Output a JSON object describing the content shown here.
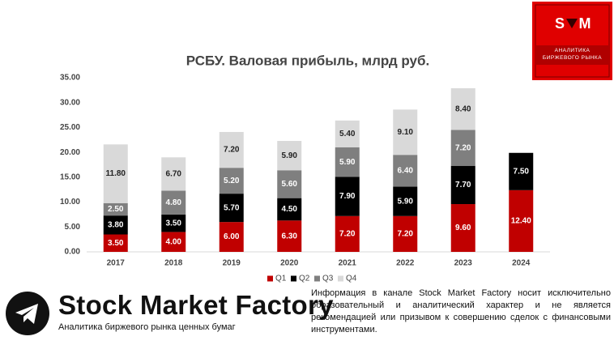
{
  "chart_data": {
    "type": "stacked_bar",
    "title": "РСБУ. Валовая прибыль, млрд руб.",
    "categories": [
      "2017",
      "2018",
      "2019",
      "2020",
      "2021",
      "2022",
      "2023",
      "2024"
    ],
    "series": [
      {
        "name": "Q1",
        "color": "#c00000",
        "values": [
          3.5,
          4.0,
          6.0,
          6.3,
          7.2,
          7.2,
          9.6,
          12.4
        ],
        "value_labels": [
          "3.50",
          "4.00",
          "6.00",
          "6.30",
          "7.20",
          "7.20",
          "9.60",
          "12.40"
        ]
      },
      {
        "name": "Q2",
        "color": "#000000",
        "values": [
          3.8,
          3.5,
          5.7,
          4.5,
          7.9,
          5.9,
          7.7,
          7.5
        ],
        "value_labels": [
          "3.80",
          "3.50",
          "5.70",
          "4.50",
          "7.90",
          "5.90",
          "7.70",
          "7.50"
        ]
      },
      {
        "name": "Q3",
        "color": "#7f7f7f",
        "values": [
          2.5,
          4.8,
          5.2,
          5.6,
          5.9,
          6.4,
          7.2,
          null
        ],
        "value_labels": [
          "2.50",
          "4.80",
          "5.20",
          "5.60",
          "5.90",
          "6.40",
          "7.20",
          null
        ]
      },
      {
        "name": "Q4",
        "color": "#d9d9d9",
        "values": [
          11.8,
          6.7,
          7.2,
          5.9,
          5.4,
          9.1,
          8.4,
          null
        ],
        "value_labels": [
          "11.80",
          "6.70",
          "7.20",
          "5.90",
          "5.40",
          "9.10",
          "8.40",
          null
        ]
      }
    ],
    "ylim": [
      0,
      35
    ],
    "yticks": [
      {
        "value": 0,
        "label": "0.00"
      },
      {
        "value": 5,
        "label": "5.00"
      },
      {
        "value": 10,
        "label": "10.00"
      },
      {
        "value": 15,
        "label": "15.00"
      },
      {
        "value": 20,
        "label": "20.00"
      },
      {
        "value": 25,
        "label": "25.00"
      },
      {
        "value": 30,
        "label": "30.00"
      },
      {
        "value": 35,
        "label": "35.00"
      }
    ],
    "grid": false,
    "legend": "bottom"
  },
  "logo": {
    "left": "S",
    "right": "M",
    "caption": "АНАЛИТИКА БИРЖЕВОГО РЫНКА"
  },
  "footer": {
    "brand": "Stock Market Factory",
    "tagline": "Аналитика биржевого рынка ценных бумаг",
    "disclaimer": "Информация в канале Stock Market Factory носит исключительно образовательный и аналитический характер и не является рекомендацией или призывом к совершению сделок с финансовыми инструментами."
  }
}
